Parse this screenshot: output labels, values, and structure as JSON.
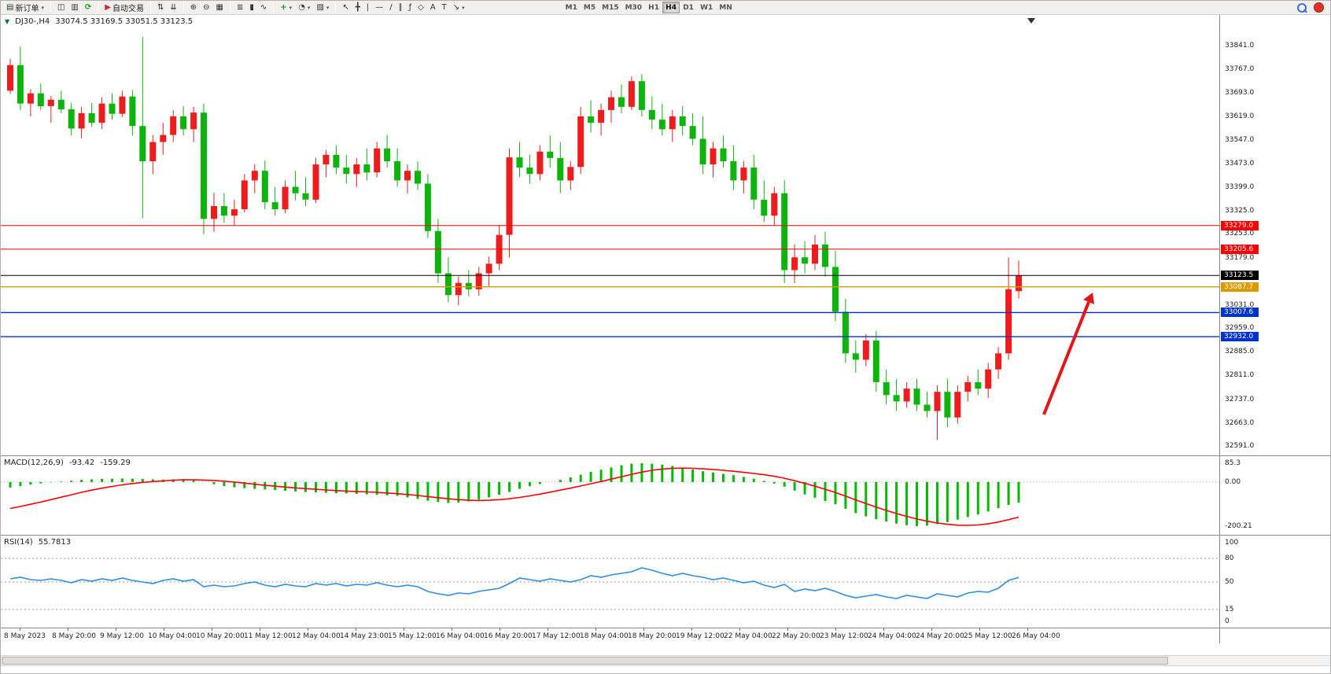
{
  "icons": {
    "one_click_toggle": "▼"
  },
  "chart": {
    "symbol_period": "DJ30-,H4",
    "ohlc": "33074.5 33169.5 33051.5 33123.5"
  },
  "toolbar": {
    "buttons": [
      {
        "name": "new-order-button",
        "glyph": "▤",
        "label": "新订单",
        "dropdown": true
      },
      {
        "name": "charts-window-button",
        "glyph": "◫",
        "group_start": true
      },
      {
        "name": "data-window-button",
        "glyph": "▥"
      },
      {
        "name": "refresh-button",
        "glyph": "⟳",
        "color": "#149914"
      },
      {
        "name": "auto-trading-button",
        "glyph": "▶",
        "label": "自动交易",
        "color": "#cc2b2b",
        "group_start": true
      },
      {
        "name": "sort-up-button",
        "glyph": "⇅",
        "group_start": true
      },
      {
        "name": "sort-down-button",
        "glyph": "⇊"
      },
      {
        "name": "zoom-in-button",
        "glyph": "⊕",
        "group_start": true
      },
      {
        "name": "zoom-out-button",
        "glyph": "⊖"
      },
      {
        "name": "tile-windows-button",
        "glyph": "▦"
      },
      {
        "name": "bar-chart-type-button",
        "glyph": "≣",
        "group_start": true
      },
      {
        "name": "candlestick-chart-type-button",
        "glyph": "▮"
      },
      {
        "name": "line-chart-type-button",
        "glyph": "∿"
      },
      {
        "name": "indicators-button",
        "glyph": "+",
        "color": "#149914",
        "dropdown": true,
        "group_start": true
      },
      {
        "name": "periods-button",
        "glyph": "◔",
        "dropdown": true
      },
      {
        "name": "templates-button",
        "glyph": "▧",
        "dropdown": true
      },
      {
        "name": "cursor-button",
        "glyph": "↖",
        "group_start": true
      },
      {
        "name": "crosshair-button",
        "glyph": "╋"
      },
      {
        "name": "vertical-line-button",
        "glyph": "|"
      },
      {
        "name": "horizontal-line-button",
        "glyph": "—"
      },
      {
        "name": "trendline-button",
        "glyph": "∕"
      },
      {
        "name": "channel-button",
        "glyph": "∥"
      },
      {
        "name": "fibonacci-button",
        "glyph": "ƒ"
      },
      {
        "name": "shapes-button",
        "glyph": "◇"
      },
      {
        "name": "text-button",
        "glyph": "A"
      },
      {
        "name": "text-label-button",
        "glyph": "T"
      },
      {
        "name": "arrows-button",
        "glyph": "↘",
        "dropdown": true
      }
    ],
    "timeframes": {
      "options": [
        "M1",
        "M5",
        "M15",
        "M30",
        "H1",
        "H4",
        "D1",
        "W1",
        "MN"
      ],
      "active": "H4"
    }
  },
  "chart_data": {
    "type": "candlestick",
    "symbol": "DJ30-",
    "period": "H4",
    "colors": {
      "up": "#ee1c1c",
      "down": "#0cb40c",
      "macd_hist": "#00bb00",
      "macd_signal": "#ff0000",
      "rsi_line": "#2a8fe8"
    },
    "price_axis": {
      "min": 32591,
      "max": 33841,
      "labels": [
        "33841.0",
        "33767.0",
        "33693.0",
        "33619.0",
        "33547.0",
        "33473.0",
        "33399.0",
        "33325.0",
        "33253.0",
        "33179.0",
        "33031.0",
        "32959.0",
        "32885.0",
        "32811.0",
        "32737.0",
        "32663.0",
        "32591.0"
      ]
    },
    "levels": [
      {
        "price": 33279.0,
        "label": "33279.0",
        "color": "#ff0000",
        "width": 1
      },
      {
        "price": 33205.6,
        "label": "33205.6",
        "color": "#ff0000",
        "width": 1
      },
      {
        "price": 33123.5,
        "label": "33123.5",
        "color": "#000000",
        "width": 1
      },
      {
        "price": 33087.7,
        "label": "33087.7",
        "color": "#dd9900",
        "width": 1.4
      },
      {
        "price": 33007.6,
        "label": "33007.6",
        "color": "#0033cc",
        "width": 1.4
      },
      {
        "price": 32932.0,
        "label": "32932.0",
        "color": "#0033cc",
        "width": 1.4
      }
    ],
    "candles": [
      [
        33700,
        33800,
        33690,
        33780
      ],
      [
        33780,
        33838,
        33640,
        33660
      ],
      [
        33660,
        33705,
        33620,
        33692
      ],
      [
        33692,
        33722,
        33640,
        33652
      ],
      [
        33652,
        33684,
        33600,
        33672
      ],
      [
        33672,
        33700,
        33630,
        33642
      ],
      [
        33642,
        33662,
        33560,
        33582
      ],
      [
        33582,
        33650,
        33552,
        33630
      ],
      [
        33630,
        33662,
        33588,
        33600
      ],
      [
        33600,
        33680,
        33580,
        33660
      ],
      [
        33660,
        33692,
        33610,
        33628
      ],
      [
        33628,
        33700,
        33618,
        33682
      ],
      [
        33682,
        33702,
        33560,
        33590
      ],
      [
        33590,
        33868,
        33302,
        33480
      ],
      [
        33480,
        33562,
        33440,
        33540
      ],
      [
        33540,
        33600,
        33500,
        33562
      ],
      [
        33562,
        33640,
        33540,
        33620
      ],
      [
        33620,
        33652,
        33560,
        33580
      ],
      [
        33580,
        33650,
        33540,
        33632
      ],
      [
        33632,
        33660,
        33252,
        33300
      ],
      [
        33300,
        33382,
        33260,
        33340
      ],
      [
        33340,
        33380,
        33288,
        33310
      ],
      [
        33310,
        33360,
        33278,
        33330
      ],
      [
        33330,
        33440,
        33320,
        33420
      ],
      [
        33420,
        33470,
        33380,
        33450
      ],
      [
        33450,
        33482,
        33330,
        33352
      ],
      [
        33352,
        33400,
        33310,
        33330
      ],
      [
        33330,
        33420,
        33318,
        33400
      ],
      [
        33400,
        33450,
        33358,
        33380
      ],
      [
        33380,
        33430,
        33340,
        33360
      ],
      [
        33360,
        33490,
        33350,
        33470
      ],
      [
        33470,
        33515,
        33430,
        33500
      ],
      [
        33500,
        33530,
        33440,
        33460
      ],
      [
        33460,
        33500,
        33410,
        33440
      ],
      [
        33440,
        33490,
        33400,
        33470
      ],
      [
        33470,
        33520,
        33420,
        33445
      ],
      [
        33445,
        33540,
        33430,
        33520
      ],
      [
        33520,
        33562,
        33460,
        33480
      ],
      [
        33480,
        33520,
        33400,
        33420
      ],
      [
        33420,
        33470,
        33380,
        33450
      ],
      [
        33450,
        33480,
        33390,
        33410
      ],
      [
        33410,
        33440,
        33240,
        33262
      ],
      [
        33262,
        33300,
        33100,
        33130
      ],
      [
        33130,
        33180,
        33040,
        33062
      ],
      [
        33062,
        33120,
        33030,
        33100
      ],
      [
        33100,
        33140,
        33058,
        33080
      ],
      [
        33080,
        33150,
        33060,
        33130
      ],
      [
        33130,
        33182,
        33090,
        33160
      ],
      [
        33160,
        33280,
        33140,
        33250
      ],
      [
        33250,
        33520,
        33180,
        33492
      ],
      [
        33492,
        33540,
        33430,
        33460
      ],
      [
        33460,
        33500,
        33410,
        33440
      ],
      [
        33440,
        33530,
        33420,
        33510
      ],
      [
        33510,
        33560,
        33460,
        33490
      ],
      [
        33490,
        33540,
        33380,
        33420
      ],
      [
        33420,
        33480,
        33390,
        33462
      ],
      [
        33462,
        33650,
        33440,
        33620
      ],
      [
        33620,
        33670,
        33570,
        33600
      ],
      [
        33600,
        33660,
        33560,
        33640
      ],
      [
        33640,
        33700,
        33600,
        33680
      ],
      [
        33680,
        33720,
        33630,
        33650
      ],
      [
        33650,
        33745,
        33640,
        33730
      ],
      [
        33730,
        33752,
        33620,
        33640
      ],
      [
        33640,
        33682,
        33580,
        33610
      ],
      [
        33610,
        33660,
        33560,
        33580
      ],
      [
        33580,
        33640,
        33540,
        33620
      ],
      [
        33620,
        33652,
        33560,
        33590
      ],
      [
        33590,
        33630,
        33530,
        33550
      ],
      [
        33550,
        33620,
        33440,
        33470
      ],
      [
        33470,
        33540,
        33430,
        33520
      ],
      [
        33520,
        33560,
        33460,
        33480
      ],
      [
        33480,
        33530,
        33390,
        33420
      ],
      [
        33420,
        33480,
        33380,
        33460
      ],
      [
        33460,
        33500,
        33330,
        33360
      ],
      [
        33360,
        33420,
        33290,
        33310
      ],
      [
        33310,
        33400,
        33280,
        33380
      ],
      [
        33380,
        33420,
        33100,
        33140
      ],
      [
        33140,
        33220,
        33100,
        33180
      ],
      [
        33180,
        33230,
        33130,
        33160
      ],
      [
        33160,
        33250,
        33140,
        33220
      ],
      [
        33220,
        33260,
        33120,
        33150
      ],
      [
        33150,
        33200,
        32980,
        33010
      ],
      [
        33010,
        33050,
        32850,
        32880
      ],
      [
        32880,
        32920,
        32820,
        32860
      ],
      [
        32860,
        32940,
        32840,
        32920
      ],
      [
        32920,
        32950,
        32760,
        32790
      ],
      [
        32790,
        32830,
        32720,
        32750
      ],
      [
        32750,
        32800,
        32700,
        32730
      ],
      [
        32730,
        32790,
        32710,
        32770
      ],
      [
        32770,
        32800,
        32700,
        32720
      ],
      [
        32720,
        32760,
        32680,
        32700
      ],
      [
        32700,
        32780,
        32610,
        32760
      ],
      [
        32760,
        32800,
        32650,
        32680
      ],
      [
        32680,
        32780,
        32660,
        32760
      ],
      [
        32760,
        32810,
        32730,
        32790
      ],
      [
        32790,
        32830,
        32750,
        32770
      ],
      [
        32770,
        32850,
        32740,
        32830
      ],
      [
        32830,
        32900,
        32800,
        32880
      ],
      [
        32880,
        33180,
        32860,
        33080
      ],
      [
        33074.5,
        33169.5,
        33051.5,
        33123.5
      ]
    ],
    "time_labels": [
      "8 May 2023",
      "8 May 20:00",
      "9 May 12:00",
      "10 May 04:00",
      "10 May 20:00",
      "11 May 12:00",
      "12 May 04:00",
      "14 May 23:00",
      "15 May 12:00",
      "16 May 04:00",
      "16 May 20:00",
      "17 May 12:00",
      "18 May 04:00",
      "18 May 20:00",
      "19 May 12:00",
      "22 May 04:00",
      "22 May 20:00",
      "23 May 12:00",
      "24 May 04:00",
      "24 May 20:00",
      "25 May 12:00",
      "26 May 04:00"
    ],
    "macd": {
      "name": "MACD(12,26,9)",
      "value_main": "-93.42",
      "value_signal": "-159.29",
      "axis_labels": [
        {
          "text": "85.3",
          "value": 85.3
        },
        {
          "text": "0.00",
          "value": 0
        },
        {
          "text": "-200.21",
          "value": -200.21
        }
      ],
      "range": [
        -200.21,
        85.3
      ],
      "hist": [
        -25,
        -18,
        -12,
        -6,
        -2,
        2,
        6,
        10,
        12,
        14,
        15,
        16,
        15,
        14,
        12,
        11,
        12,
        13,
        8,
        0,
        -10,
        -18,
        -24,
        -28,
        -31,
        -34,
        -37,
        -40,
        -43,
        -45,
        -47,
        -49,
        -51,
        -52,
        -54,
        -56,
        -58,
        -60,
        -63,
        -70,
        -77,
        -85,
        -91,
        -95,
        -93,
        -88,
        -80,
        -70,
        -58,
        -45,
        -31,
        -19,
        -9,
        0,
        10,
        21,
        33,
        46,
        56,
        66,
        76,
        83,
        85,
        83,
        79,
        73,
        65,
        57,
        49,
        43,
        37,
        31,
        23,
        15,
        5,
        -7,
        -21,
        -39,
        -56,
        -71,
        -86,
        -101,
        -121,
        -141,
        -156,
        -169,
        -179,
        -189,
        -196,
        -200.2,
        -198,
        -191,
        -182,
        -171,
        -159,
        -147,
        -134,
        -119,
        -104,
        -93.4
      ],
      "signal": [
        -120,
        -111,
        -101,
        -91,
        -80,
        -69,
        -58,
        -47,
        -37,
        -28,
        -20,
        -13,
        -7,
        -2,
        2,
        5,
        8,
        10,
        10,
        9,
        7,
        4,
        0,
        -5,
        -10,
        -15,
        -19,
        -23,
        -27,
        -30,
        -33,
        -36,
        -39,
        -41,
        -43,
        -45,
        -47,
        -50,
        -53,
        -57,
        -61,
        -66,
        -71,
        -76,
        -80,
        -83,
        -84,
        -83,
        -80,
        -76,
        -70,
        -63,
        -55,
        -46,
        -37,
        -28,
        -18,
        -8,
        2,
        13,
        24,
        35,
        45,
        53,
        59,
        62,
        63,
        62,
        60,
        57,
        53,
        49,
        44,
        39,
        33,
        26,
        17,
        6,
        -6,
        -19,
        -33,
        -48,
        -64,
        -81,
        -98,
        -114,
        -129,
        -143,
        -156,
        -168,
        -178,
        -186,
        -192,
        -196,
        -197,
        -195,
        -190,
        -182,
        -171,
        -159.3
      ]
    },
    "rsi": {
      "name": "RSI(14)",
      "value": "55.7813",
      "axis_labels": [
        {
          "text": "100",
          "value": 100
        },
        {
          "text": "80",
          "value": 80
        },
        {
          "text": "50",
          "value": 50
        },
        {
          "text": "15",
          "value": 15
        },
        {
          "text": "0",
          "value": 0
        }
      ],
      "level_lines": [
        80,
        50,
        15
      ],
      "range": [
        0,
        100
      ],
      "values": [
        54,
        56,
        53,
        52,
        54,
        52,
        49,
        53,
        51,
        54,
        52,
        55,
        52,
        50,
        48,
        52,
        54,
        51,
        53,
        44,
        46,
        44,
        45,
        48,
        50,
        46,
        44,
        47,
        45,
        44,
        48,
        46,
        48,
        45,
        47,
        46,
        49,
        46,
        44,
        46,
        44,
        38,
        35,
        33,
        36,
        35,
        38,
        40,
        42,
        48,
        55,
        53,
        51,
        54,
        52,
        50,
        53,
        58,
        56,
        59,
        61,
        63,
        68,
        65,
        61,
        58,
        61,
        58,
        56,
        53,
        55,
        52,
        49,
        51,
        46,
        43,
        47,
        38,
        41,
        39,
        42,
        38,
        33,
        30,
        32,
        34,
        31,
        29,
        33,
        31,
        29,
        35,
        33,
        31,
        36,
        38,
        37,
        42,
        52,
        55.78
      ]
    },
    "annotation_arrow": {
      "color": "#e41616"
    }
  }
}
